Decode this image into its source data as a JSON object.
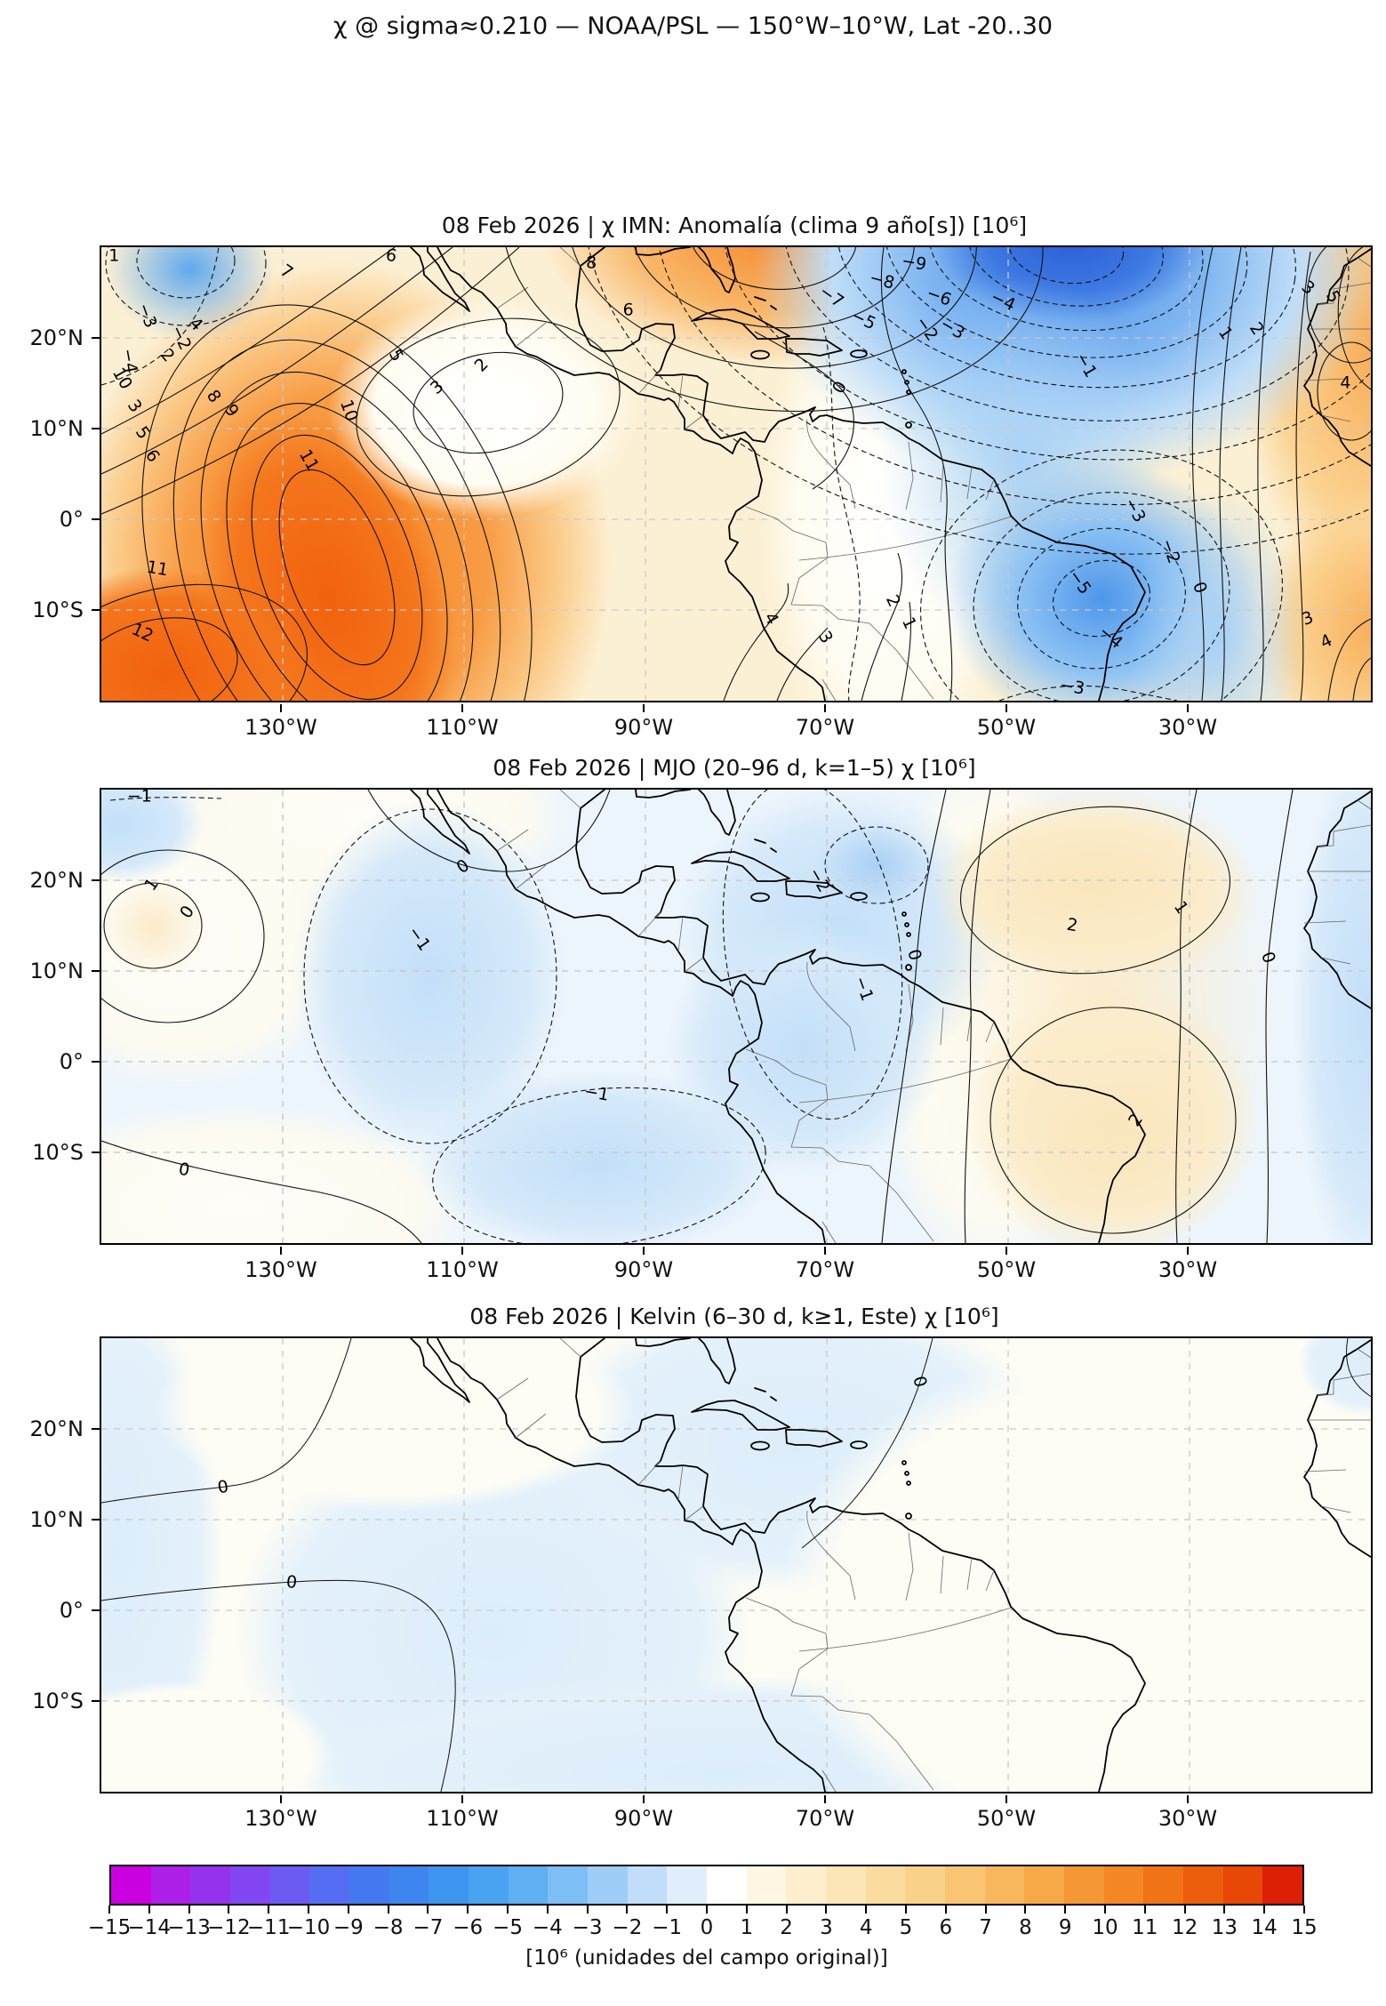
{
  "figure": {
    "title": "χ @ sigma≈0.210 — NOAA/PSL — 150°W–10°W, Lat -20..30"
  },
  "chart_data": {
    "type": "heatmap",
    "subtype": "filled_contour_maps_lat_lon",
    "grid": "dashed graticule every 20° lon / 10° lat",
    "lon_range_deg_west": [
      150,
      10
    ],
    "lat_range_deg_north": [
      30,
      -20
    ],
    "lon_ticks": [
      {
        "value": 130,
        "label": "130°W"
      },
      {
        "value": 110,
        "label": "110°W"
      },
      {
        "value": 90,
        "label": "90°W"
      },
      {
        "value": 70,
        "label": "70°W"
      },
      {
        "value": 50,
        "label": "50°W"
      },
      {
        "value": 30,
        "label": "30°W"
      }
    ],
    "lat_ticks": [
      {
        "value": 20,
        "label": "20°N"
      },
      {
        "value": 10,
        "label": "10°N"
      },
      {
        "value": 0,
        "label": "0°"
      },
      {
        "value": -10,
        "label": "10°S"
      }
    ],
    "contour_interval": 1,
    "panels": [
      {
        "title": "08 Feb 2026 | χ IMN: Anomalía (clima 9 año[s]) [10⁶]",
        "value_range": [
          -10,
          12
        ],
        "features": [
          {
            "center": "~124°W, 4°S",
            "value": 12,
            "sign": "máximo"
          },
          {
            "center": "~79°W, 29°N",
            "value": 8,
            "sign": "máximo"
          },
          {
            "center": "~45°W, 29°N",
            "value": -10,
            "sign": "mínimo"
          },
          {
            "center": "~40°W, 8°S",
            "value": -5,
            "sign": "mínimo"
          },
          {
            "center": "África occidental",
            "value": 5,
            "sign": "máximo"
          },
          {
            "center": "~148°W, 27°N",
            "value": -4,
            "sign": "mínimo"
          }
        ],
        "contour_labels": [
          {
            "x": 1.0,
            "y": 2,
            "v": "1",
            "r": 0
          },
          {
            "x": 3.6,
            "y": 15,
            "v": "−3",
            "r": 70
          },
          {
            "x": 6.2,
            "y": 20,
            "v": "−2",
            "r": 65
          },
          {
            "x": 2.2,
            "y": 25,
            "v": "−4",
            "r": 80
          },
          {
            "x": 1.6,
            "y": 29,
            "v": "10",
            "r": 60
          },
          {
            "x": 2.6,
            "y": 35,
            "v": "3",
            "r": 55
          },
          {
            "x": 3.2,
            "y": 41,
            "v": "5",
            "r": 55
          },
          {
            "x": 4.0,
            "y": 46,
            "v": "6",
            "r": 55
          },
          {
            "x": 5.2,
            "y": 24,
            "v": "2",
            "r": 50
          },
          {
            "x": 7.4,
            "y": 17,
            "v": "4",
            "r": 45
          },
          {
            "x": 8.8,
            "y": 33,
            "v": "8",
            "r": 55
          },
          {
            "x": 10.2,
            "y": 36,
            "v": "9",
            "r": 55
          },
          {
            "x": 14.6,
            "y": 5.5,
            "v": "7",
            "r": 35
          },
          {
            "x": 22.8,
            "y": 2,
            "v": "6",
            "r": 10
          },
          {
            "x": 16.3,
            "y": 47,
            "v": "11",
            "r": 60
          },
          {
            "x": 19.5,
            "y": 36,
            "v": "10",
            "r": 70
          },
          {
            "x": 3.2,
            "y": 85,
            "v": "12",
            "r": 25
          },
          {
            "x": 4.4,
            "y": 71,
            "v": "11",
            "r": 10
          },
          {
            "x": 26.5,
            "y": 31,
            "v": "3",
            "r": -40
          },
          {
            "x": 30,
            "y": 26,
            "v": "2",
            "r": -45
          },
          {
            "x": 38.6,
            "y": 3.5,
            "v": "8",
            "r": 0
          },
          {
            "x": 41.5,
            "y": 14,
            "v": "6",
            "r": 0
          },
          {
            "x": 23.2,
            "y": 24,
            "v": "5",
            "r": 60
          },
          {
            "x": 58.2,
            "y": 31,
            "v": "0",
            "r": -60
          },
          {
            "x": 65,
            "y": 18,
            "v": "−2",
            "r": 55
          },
          {
            "x": 77.5,
            "y": 26,
            "v": "−1",
            "r": 60
          },
          {
            "x": 64,
            "y": 3.5,
            "v": "−9",
            "r": 10
          },
          {
            "x": 61.5,
            "y": 7.5,
            "v": "−8",
            "r": 15
          },
          {
            "x": 57.5,
            "y": 11,
            "v": "−7",
            "r": 35
          },
          {
            "x": 66,
            "y": 11,
            "v": "−6",
            "r": 20
          },
          {
            "x": 60,
            "y": 16,
            "v": "−5",
            "r": 25
          },
          {
            "x": 71,
            "y": 12,
            "v": "−4",
            "r": 25
          },
          {
            "x": 67,
            "y": 18,
            "v": "−3",
            "r": 30
          },
          {
            "x": 88.5,
            "y": 19,
            "v": "1",
            "r": 55
          },
          {
            "x": 91,
            "y": 18,
            "v": "2",
            "r": 55
          },
          {
            "x": 95,
            "y": 9,
            "v": "3",
            "r": 40
          },
          {
            "x": 97,
            "y": 11,
            "v": "5",
            "r": 60
          },
          {
            "x": 98,
            "y": 30,
            "v": "4",
            "r": 0
          },
          {
            "x": 77,
            "y": 74,
            "v": "−5",
            "r": 55
          },
          {
            "x": 79.5,
            "y": 86,
            "v": "−4",
            "r": 40
          },
          {
            "x": 76.5,
            "y": 97,
            "v": "−3",
            "r": 10
          },
          {
            "x": 81.4,
            "y": 58,
            "v": "−3",
            "r": 60
          },
          {
            "x": 84.2,
            "y": 67,
            "v": "−2",
            "r": 70
          },
          {
            "x": 86.5,
            "y": 75,
            "v": "0",
            "r": 70
          },
          {
            "x": 62.3,
            "y": 78,
            "v": "2",
            "r": 65
          },
          {
            "x": 63.6,
            "y": 83,
            "v": "1",
            "r": 65
          },
          {
            "x": 52.7,
            "y": 82,
            "v": "4",
            "r": 60
          },
          {
            "x": 57,
            "y": 86,
            "v": "3",
            "r": 60
          },
          {
            "x": 95,
            "y": 82,
            "v": "3",
            "r": -20
          },
          {
            "x": 96.5,
            "y": 87,
            "v": "4",
            "r": -25
          }
        ]
      },
      {
        "title": "08 Feb 2026 | MJO (20–96 d, k=1–5) χ [10⁶]",
        "value_range": [
          -2,
          2
        ],
        "features": [
          {
            "center": "~144°W, 15°N",
            "value": 1,
            "sign": "máximo"
          },
          {
            "center": "~113°W, 10°N",
            "value": -1,
            "sign": "mínimo"
          },
          {
            "center": "~64°W, 22°N",
            "value": -2,
            "sign": "mínimo"
          },
          {
            "center": "~41°W, 19°N",
            "value": 2,
            "sign": "máximo"
          },
          {
            "center": "~39°W, 6°S",
            "value": 2,
            "sign": "máximo"
          }
        ],
        "contour_labels": [
          {
            "x": 3,
            "y": 1.5,
            "v": "−1",
            "r": 0
          },
          {
            "x": 4,
            "y": 21,
            "v": "1",
            "r": -55
          },
          {
            "x": 6.8,
            "y": 27,
            "v": "0",
            "r": -55
          },
          {
            "x": 25,
            "y": 33,
            "v": "−1",
            "r": 55
          },
          {
            "x": 28.5,
            "y": 17,
            "v": "0",
            "r": -35
          },
          {
            "x": 56.5,
            "y": 20,
            "v": "−2",
            "r": 60
          },
          {
            "x": 60,
            "y": 44,
            "v": "−1",
            "r": 70
          },
          {
            "x": 64,
            "y": 36.5,
            "v": "0",
            "r": 75
          },
          {
            "x": 76.5,
            "y": 30,
            "v": "2",
            "r": 10
          },
          {
            "x": 85,
            "y": 26,
            "v": "1",
            "r": 55
          },
          {
            "x": 81.5,
            "y": 73,
            "v": "2",
            "r": -55
          },
          {
            "x": 91.9,
            "y": 37,
            "v": "0",
            "r": 70
          },
          {
            "x": 39,
            "y": 67,
            "v": "−1",
            "r": 10
          },
          {
            "x": 6.5,
            "y": 84,
            "v": "0",
            "r": 10
          }
        ]
      },
      {
        "title": "08 Feb 2026 | Kelvin (6–30 d, k≥1, Este) χ [10⁶]",
        "value_range": [
          -1,
          1
        ],
        "features": [
          {
            "center": "campo casi nulo; contorno 0 dominante",
            "value": 0,
            "sign": "neutro"
          }
        ],
        "contour_labels": [
          {
            "x": 9.6,
            "y": 33,
            "v": "0",
            "r": -10
          },
          {
            "x": 15,
            "y": 54,
            "v": "0",
            "r": 5
          },
          {
            "x": 64.4,
            "y": 9.6,
            "v": "0",
            "r": 75
          }
        ]
      }
    ],
    "colorbar": {
      "min": -15,
      "max": 15,
      "ticks": [
        "−15",
        "−14",
        "−13",
        "−12",
        "−11",
        "−10",
        "−9",
        "−8",
        "−7",
        "−6",
        "−5",
        "−4",
        "−3",
        "−2",
        "−1",
        "0",
        "1",
        "2",
        "3",
        "4",
        "5",
        "6",
        "7",
        "8",
        "9",
        "10",
        "11",
        "12",
        "13",
        "14",
        "15"
      ],
      "colors": [
        "#cb00e0",
        "#ae1fe8",
        "#9632ee",
        "#8247f1",
        "#6b5bf3",
        "#556df3",
        "#4479f0",
        "#3d86ef",
        "#3d95f0",
        "#49a3f1",
        "#5fb0f3",
        "#7cbef5",
        "#9ecdf8",
        "#c0ddfa",
        "#e0eefc",
        "#ffffff",
        "#fef7e3",
        "#fdefce",
        "#fce6b6",
        "#fbdc9f",
        "#fad189",
        "#f9c572",
        "#f8b75c",
        "#f7a847",
        "#f69735",
        "#f48624",
        "#f07316",
        "#ec5e0b",
        "#e84705",
        "#dd1f05"
      ],
      "label": "[10⁶ (unidades del campo original)]"
    }
  }
}
